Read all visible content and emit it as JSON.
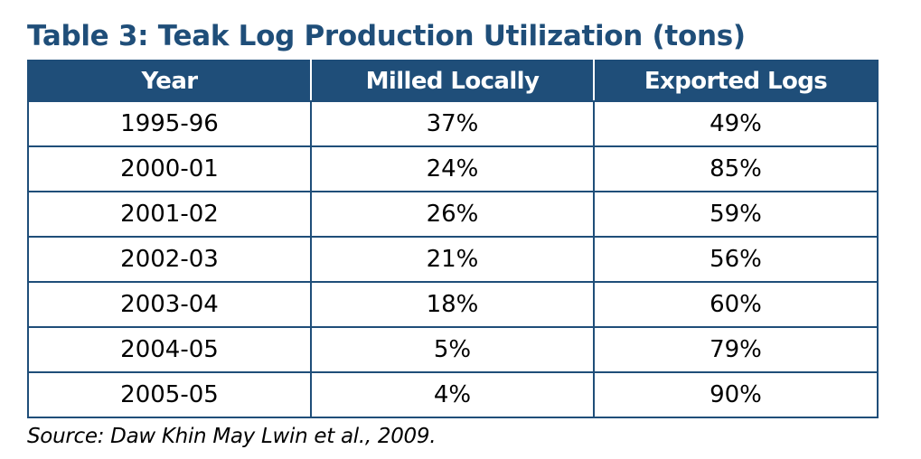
{
  "title": "Table 3: Teak Log Production Utilization (tons)",
  "table": {
    "headers": [
      "Year",
      "Milled Locally",
      "Exported Logs"
    ],
    "rows": [
      [
        "1995-96",
        "37%",
        "49%"
      ],
      [
        "2000-01",
        "24%",
        "85%"
      ],
      [
        "2001-02",
        "26%",
        "59%"
      ],
      [
        "2002-03",
        "21%",
        "56%"
      ],
      [
        "2003-04",
        "18%",
        "60%"
      ],
      [
        "2004-05",
        "5%",
        "79%"
      ],
      [
        "2005-05",
        "4%",
        "90%"
      ]
    ]
  },
  "source": "Source: Daw Khin May Lwin et al., 2009.",
  "colors": {
    "header_background": "#1f4e79",
    "header_text": "#ffffff",
    "border": "#1f4e79",
    "title": "#1f4e79"
  }
}
